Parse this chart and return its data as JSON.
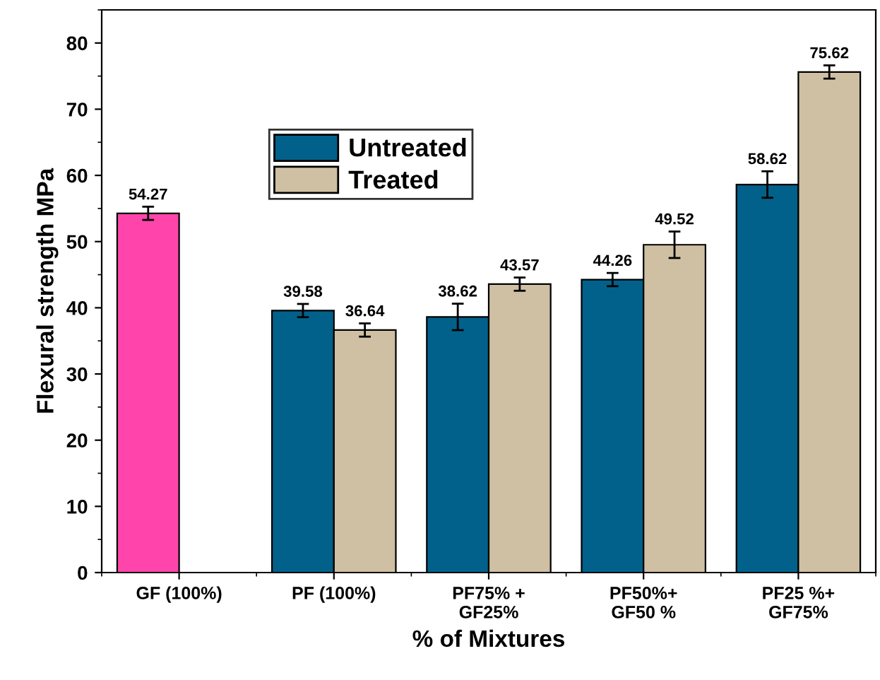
{
  "chart_data": {
    "type": "bar",
    "xlabel": "% of Mixtures",
    "ylabel": "Flexural strength MPa",
    "categories": [
      "GF (100%)",
      "PF (100%)",
      "PF75% +\nGF25%",
      "PF50%+\nGF50 %",
      "PF25 %+\nGF75%"
    ],
    "series": [
      {
        "name": "Untreated",
        "color": "#02618a",
        "colors": [
          "#ff45ab",
          "#02618a",
          "#02618a",
          "#02618a",
          "#02618a"
        ],
        "values": [
          54.27,
          39.58,
          38.62,
          44.26,
          58.62
        ],
        "errors": [
          1,
          1,
          2,
          1,
          2
        ]
      },
      {
        "name": "Treated",
        "color": "#cfc0a3",
        "values": [
          null,
          36.64,
          43.57,
          49.52,
          75.62
        ],
        "errors": [
          null,
          1,
          1,
          2,
          1
        ]
      }
    ],
    "ylim": [
      0,
      85
    ],
    "yticks": [
      0,
      10,
      20,
      30,
      40,
      50,
      60,
      70,
      80
    ],
    "grid": false,
    "legend": "top left",
    "data_labels": true
  }
}
